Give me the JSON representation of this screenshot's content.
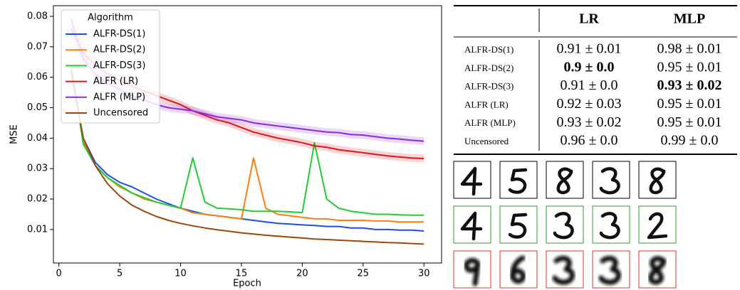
{
  "chart_data": {
    "type": "line",
    "x_label": "Epoch",
    "y_label": "MSE",
    "x": [
      1,
      2,
      3,
      4,
      5,
      6,
      7,
      8,
      9,
      10,
      11,
      12,
      13,
      14,
      15,
      16,
      17,
      18,
      19,
      20,
      21,
      22,
      23,
      24,
      25,
      26,
      27,
      28,
      29,
      30
    ],
    "xlim": [
      -0.45,
      31.45
    ],
    "xticks": [
      0,
      5,
      10,
      15,
      20,
      25,
      30
    ],
    "ylim": [
      -0.001,
      0.0835
    ],
    "yticks": [
      0.01,
      0.02,
      0.03,
      0.04,
      0.05,
      0.06,
      0.07,
      0.08
    ],
    "legend_title": "Algorithm",
    "legend_position": "upper-left",
    "series": [
      {
        "name": "ALFR-DS(1)",
        "color": "#1f4fe0",
        "values": [
          0.062,
          0.04,
          0.032,
          0.028,
          0.0255,
          0.024,
          0.022,
          0.02,
          0.0185,
          0.017,
          0.016,
          0.015,
          0.0145,
          0.014,
          0.0135,
          0.013,
          0.0125,
          0.012,
          0.0118,
          0.0115,
          0.0113,
          0.011,
          0.011,
          0.0105,
          0.0105,
          0.01,
          0.01,
          0.0098,
          0.0098,
          0.0095
        ]
      },
      {
        "name": "ALFR-DS(2)",
        "color": "#ff7f0e",
        "values": [
          0.063,
          0.039,
          0.031,
          0.027,
          0.024,
          0.022,
          0.02,
          0.019,
          0.018,
          0.017,
          0.0155,
          0.015,
          0.0145,
          0.014,
          0.0135,
          0.0335,
          0.017,
          0.015,
          0.0145,
          0.014,
          0.0135,
          0.0135,
          0.013,
          0.013,
          0.013,
          0.0128,
          0.0128,
          0.0125,
          0.0125,
          0.0125
        ]
      },
      {
        "name": "ALFR-DS(3)",
        "color": "#22cc33",
        "values": [
          0.064,
          0.038,
          0.031,
          0.027,
          0.0245,
          0.022,
          0.0205,
          0.019,
          0.018,
          0.017,
          0.0335,
          0.019,
          0.017,
          0.0168,
          0.0165,
          0.016,
          0.016,
          0.016,
          0.0158,
          0.0155,
          0.0385,
          0.02,
          0.017,
          0.016,
          0.0155,
          0.015,
          0.015,
          0.0148,
          0.0147,
          0.0147
        ]
      },
      {
        "name": "ALFR (LR)",
        "color": "#e0141e",
        "band": true,
        "values": [
          0.076,
          0.068,
          0.064,
          0.061,
          0.059,
          0.057,
          0.0555,
          0.054,
          0.0525,
          0.051,
          0.049,
          0.0475,
          0.046,
          0.045,
          0.0435,
          0.042,
          0.041,
          0.04,
          0.0393,
          0.0385,
          0.0375,
          0.037,
          0.0362,
          0.0357,
          0.0352,
          0.0347,
          0.0342,
          0.0338,
          0.0335,
          0.0333
        ]
      },
      {
        "name": "ALFR (MLP)",
        "color": "#8a2be2",
        "band": true,
        "values": [
          0.079,
          0.066,
          0.061,
          0.058,
          0.056,
          0.054,
          0.0525,
          0.051,
          0.05,
          0.0495,
          0.049,
          0.048,
          0.047,
          0.0465,
          0.046,
          0.045,
          0.0445,
          0.044,
          0.0435,
          0.043,
          0.0425,
          0.042,
          0.0418,
          0.0412,
          0.041,
          0.0405,
          0.04,
          0.0397,
          0.0393,
          0.039
        ]
      },
      {
        "name": "Uncensored",
        "color": "#a0460a",
        "values": [
          0.062,
          0.04,
          0.031,
          0.025,
          0.021,
          0.018,
          0.016,
          0.0143,
          0.013,
          0.012,
          0.0112,
          0.0105,
          0.0099,
          0.0094,
          0.0089,
          0.0085,
          0.0081,
          0.0078,
          0.0075,
          0.0072,
          0.0069,
          0.0067,
          0.0065,
          0.0063,
          0.0061,
          0.0059,
          0.0057,
          0.0056,
          0.0054,
          0.0052
        ]
      }
    ]
  },
  "table": {
    "columns": [
      "LR",
      "MLP"
    ],
    "rows": [
      {
        "name": "ALFR-DS(1)",
        "values": [
          "0.91 ± 0.01",
          "0.98 ± 0.01"
        ]
      },
      {
        "name": "ALFR-DS(2)",
        "values": [
          "0.9 ± 0.0",
          "0.95 ± 0.01"
        ]
      },
      {
        "name": "ALFR-DS(3)",
        "values": [
          "0.91 ± 0.0",
          "0.93 ± 0.02"
        ]
      },
      {
        "name": "ALFR (LR)",
        "values": [
          "0.92 ± 0.03",
          "0.95 ± 0.01"
        ]
      },
      {
        "name": "ALFR (MLP)",
        "values": [
          "0.93 ± 0.02",
          "0.95 ± 0.01"
        ]
      },
      {
        "name": "Uncensored",
        "values": [
          "0.96 ± 0.0",
          "0.99 ± 0.0"
        ]
      }
    ],
    "bold": [
      [
        1,
        0
      ],
      [
        2,
        1
      ]
    ]
  }
}
